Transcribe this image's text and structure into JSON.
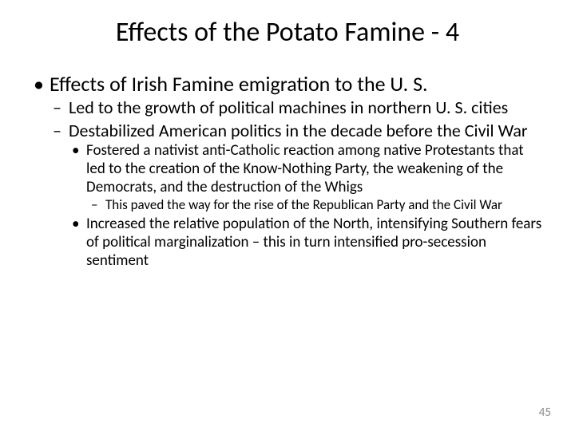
{
  "title": "Effects of the Potato Famine - 4",
  "title_fontsize": 34,
  "title_color": "#000000",
  "text_color": "#000000",
  "background_color": "#ffffff",
  "font_family": "Calibri, Arial, sans-serif",
  "page_number": "45",
  "page_number_fontsize": 15,
  "page_number_color": "#8a8a8a",
  "bullets": {
    "lvl1_fontsize": 26,
    "lvl2_fontsize": 22,
    "lvl3_fontsize": 19,
    "lvl4_fontsize": 17
  },
  "content": {
    "item1": "Effects of Irish Famine emigration to the U. S.",
    "item1_1": "Led to the growth of political machines in northern U. S. cities",
    "item1_2": "Destabilized American politics in the decade before the Civil War",
    "item1_2_1": "Fostered a nativist anti-Catholic reaction among native Protestants that led to the creation of the Know-Nothing Party, the weakening of the Democrats, and the destruction of the Whigs",
    "item1_2_1_1": "This paved the way for the rise of the Republican Party and the Civil War",
    "item1_2_2": "Increased the relative population of the North, intensifying Southern fears of political marginalization – this in turn intensified pro-secession sentiment"
  }
}
